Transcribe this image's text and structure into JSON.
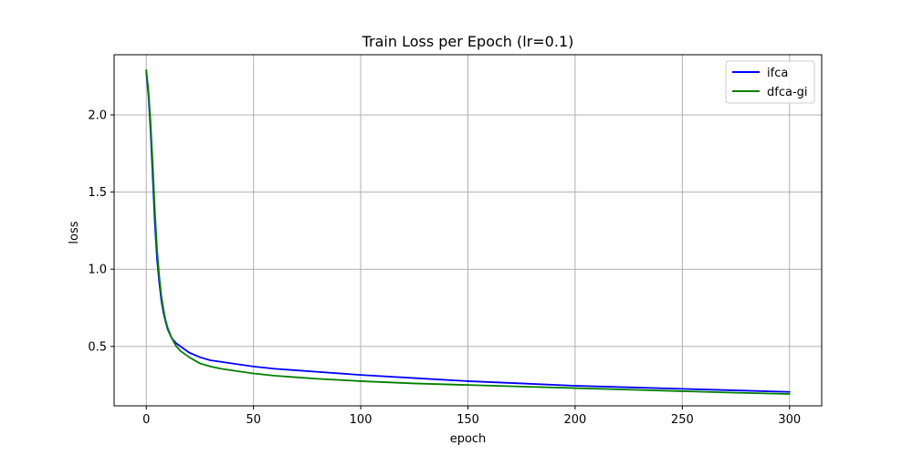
{
  "chart_data": {
    "type": "line",
    "title": "Train Loss per Epoch (lr=0.1)",
    "xlabel": "epoch",
    "ylabel": "loss",
    "xlim": [
      -15,
      315
    ],
    "ylim": [
      0.115,
      2.39
    ],
    "xticks": [
      0,
      50,
      100,
      150,
      200,
      250,
      300
    ],
    "xtick_labels": [
      "0",
      "50",
      "100",
      "150",
      "200",
      "250",
      "300"
    ],
    "yticks": [
      0.5,
      1.0,
      1.5,
      2.0
    ],
    "ytick_labels": [
      "0.5",
      "1.0",
      "1.5",
      "2.0"
    ],
    "grid": true,
    "legend_position": "top-right",
    "series": [
      {
        "name": "ifca",
        "color": "#0000ff",
        "x": [
          0,
          1,
          2,
          3,
          4,
          5,
          6,
          7,
          8,
          9,
          10,
          12,
          14,
          16,
          18,
          20,
          25,
          30,
          35,
          40,
          50,
          60,
          70,
          80,
          100,
          125,
          150,
          175,
          200,
          225,
          250,
          275,
          300
        ],
        "y": [
          2.28,
          2.13,
          1.9,
          1.6,
          1.3,
          1.07,
          0.92,
          0.8,
          0.72,
          0.66,
          0.61,
          0.55,
          0.52,
          0.5,
          0.48,
          0.46,
          0.43,
          0.41,
          0.4,
          0.39,
          0.37,
          0.355,
          0.345,
          0.335,
          0.315,
          0.295,
          0.275,
          0.26,
          0.245,
          0.235,
          0.225,
          0.215,
          0.205
        ]
      },
      {
        "name": "dfca-gi",
        "color": "#008000",
        "x": [
          0,
          1,
          2,
          3,
          4,
          5,
          6,
          7,
          8,
          9,
          10,
          12,
          14,
          16,
          18,
          20,
          25,
          30,
          35,
          40,
          50,
          60,
          70,
          80,
          100,
          125,
          150,
          175,
          200,
          225,
          250,
          275,
          300
        ],
        "y": [
          2.29,
          2.16,
          1.95,
          1.68,
          1.38,
          1.13,
          0.96,
          0.83,
          0.74,
          0.67,
          0.62,
          0.55,
          0.5,
          0.47,
          0.45,
          0.43,
          0.39,
          0.37,
          0.355,
          0.345,
          0.325,
          0.31,
          0.3,
          0.29,
          0.275,
          0.26,
          0.25,
          0.24,
          0.23,
          0.22,
          0.21,
          0.2,
          0.192
        ]
      }
    ]
  }
}
